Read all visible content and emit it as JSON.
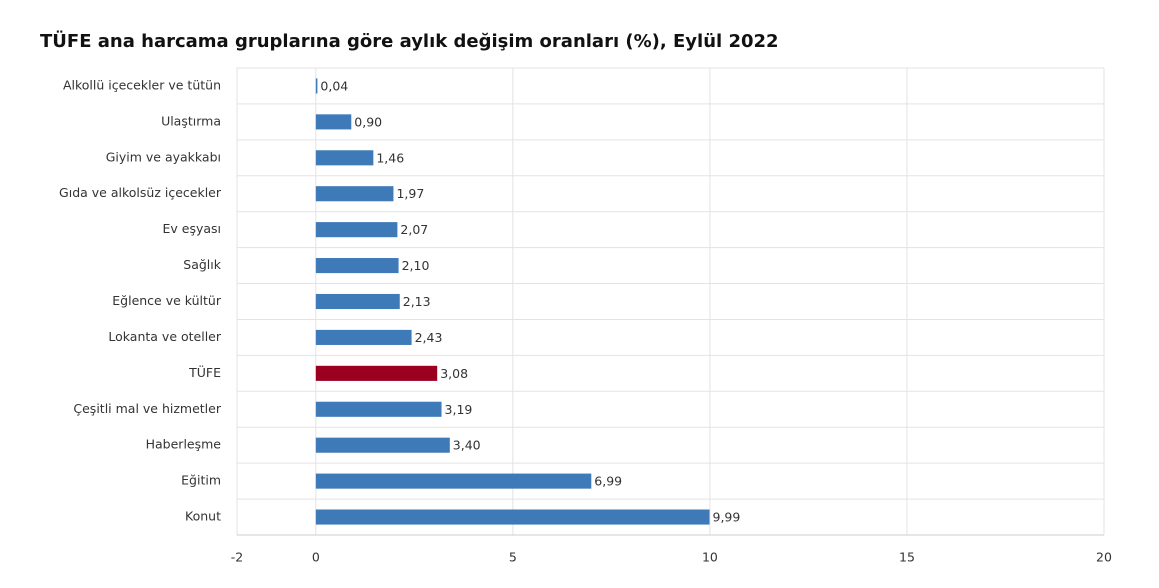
{
  "chart_data": {
    "type": "barh",
    "title": "TÜFE ana harcama gruplarına göre aylık değişim oranları (%), Eylül 2022",
    "categories": [
      "Alkollü içecekler ve tütün",
      "Ulaştırma",
      "Giyim ve ayakkabı",
      "Gıda ve alkolsüz içecekler",
      "Ev eşyası",
      "Sağlık",
      "Eğlence ve kültür",
      "Lokanta ve oteller",
      "TÜFE",
      "Çeşitli mal ve hizmetler",
      "Haberleşme",
      "Eğitim",
      "Konut"
    ],
    "values": [
      0.04,
      0.9,
      1.46,
      1.97,
      2.07,
      2.1,
      2.13,
      2.43,
      3.08,
      3.19,
      3.4,
      6.99,
      9.99
    ],
    "value_labels": [
      "0,04",
      "0,90",
      "1,46",
      "1,97",
      "2,07",
      "2,10",
      "2,13",
      "2,43",
      "3,08",
      "3,19",
      "3,40",
      "6,99",
      "9,99"
    ],
    "colors": [
      "#3f7ab8",
      "#3f7ab8",
      "#3f7ab8",
      "#3f7ab8",
      "#3f7ab8",
      "#3f7ab8",
      "#3f7ab8",
      "#3f7ab8",
      "#9b0020",
      "#3f7ab8",
      "#3f7ab8",
      "#3f7ab8",
      "#3f7ab8"
    ],
    "xlim": [
      -2,
      20
    ],
    "xticks": [
      -2,
      0,
      5,
      10,
      15,
      20
    ],
    "grid": true
  }
}
